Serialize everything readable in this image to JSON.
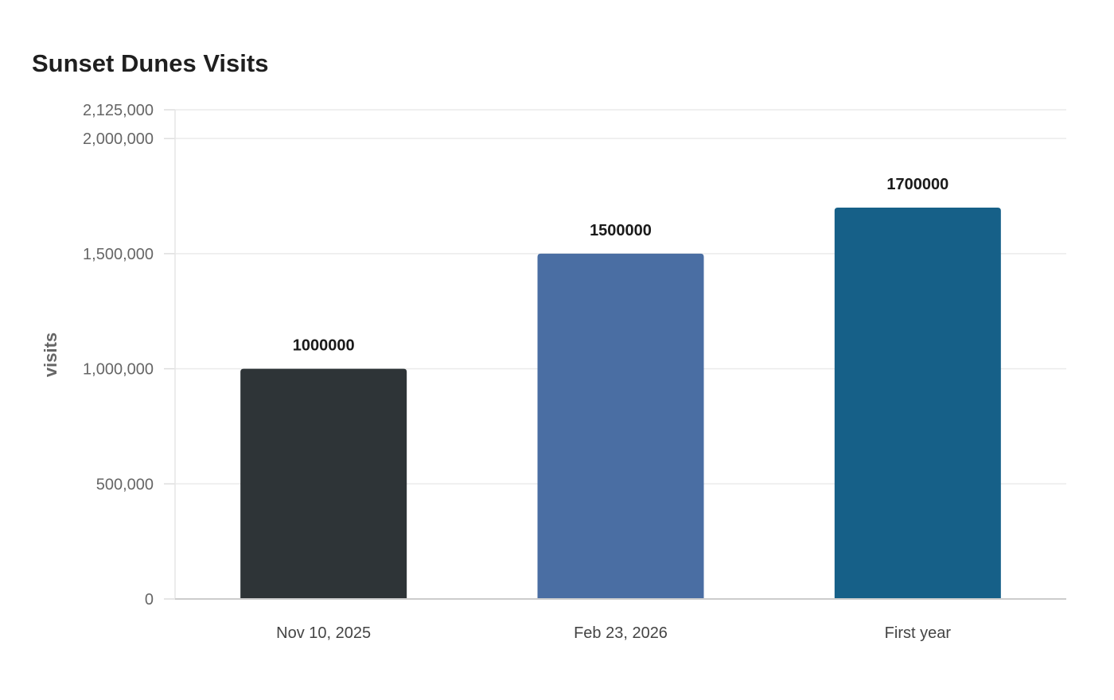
{
  "chart_data": {
    "type": "bar",
    "title": "Sunset Dunes Visits",
    "xlabel": "",
    "ylabel": "visits",
    "categories": [
      "Nov 10, 2025",
      "Feb 23, 2026",
      "First year"
    ],
    "values": [
      1000000,
      1500000,
      1700000
    ],
    "data_labels": [
      "1000000",
      "1500000",
      "1700000"
    ],
    "bar_colors": [
      "#2e3437",
      "#4a6ea3",
      "#166088"
    ],
    "ylim": [
      0,
      2125000
    ],
    "y_ticks": [
      0,
      500000,
      1000000,
      1500000,
      2000000,
      2125000
    ],
    "y_tick_labels": [
      "0",
      "500,000",
      "1,000,000",
      "1,500,000",
      "2,000,000",
      "2,125,000"
    ],
    "grid": true,
    "legend": "none"
  }
}
